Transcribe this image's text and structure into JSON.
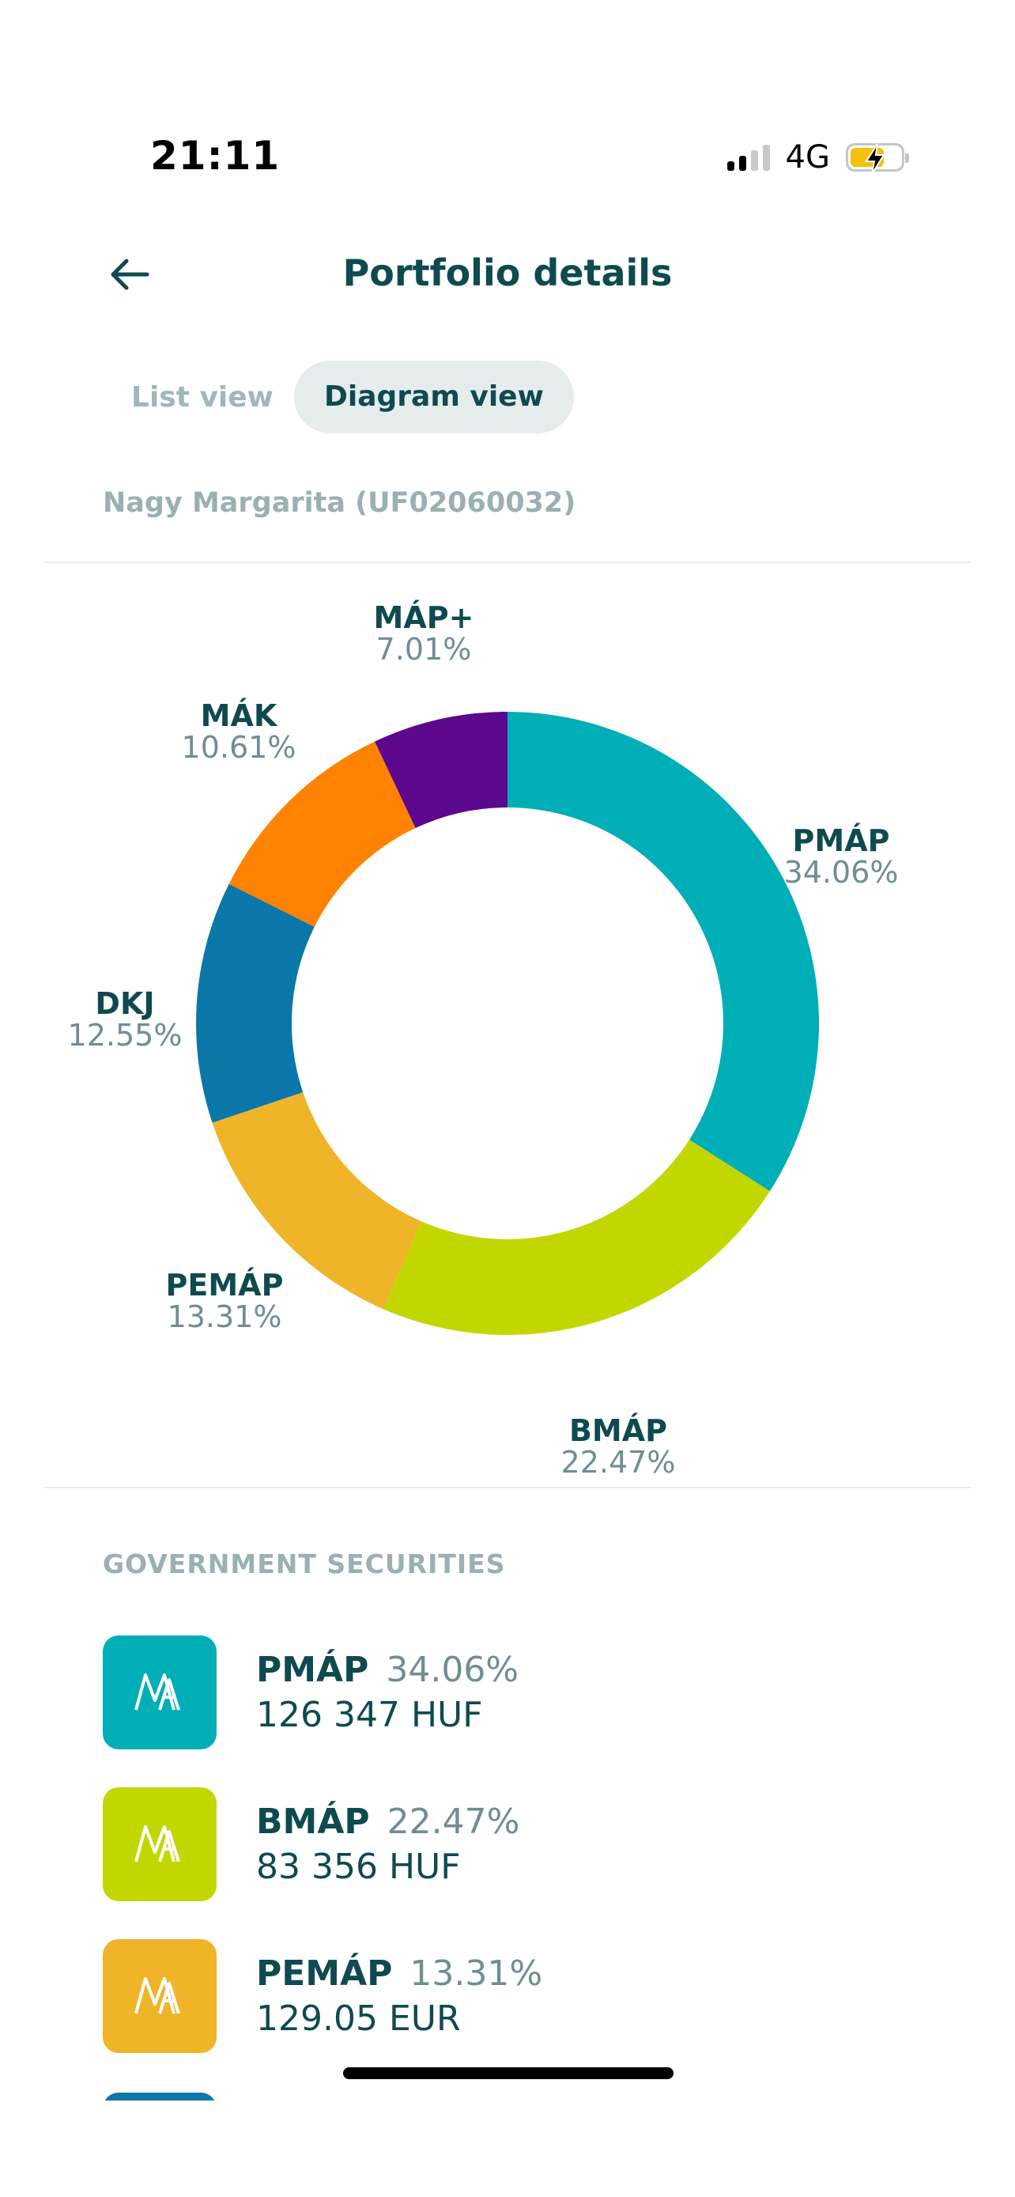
{
  "status_bar": {
    "time": "21:11",
    "network": "4G"
  },
  "header": {
    "title": "Portfolio details"
  },
  "tabs": {
    "list": "List view",
    "diagram": "Diagram view",
    "active": "diagram"
  },
  "owner": "Nagy Margarita (UF02060032)",
  "chart_data": {
    "type": "pie",
    "donut": true,
    "slices": [
      {
        "name": "PMÁP",
        "label": "34.06%",
        "value": 34.06,
        "color": "#00aeb8"
      },
      {
        "name": "BMÁP",
        "label": "22.47%",
        "value": 22.47,
        "color": "#c2d700"
      },
      {
        "name": "PEMÁP",
        "label": "13.31%",
        "value": 13.31,
        "color": "#f0b429"
      },
      {
        "name": "DKJ",
        "label": "12.55%",
        "value": 12.55,
        "color": "#0a77a8"
      },
      {
        "name": "MÁK",
        "label": "10.61%",
        "value": 10.61,
        "color": "#ff8300"
      },
      {
        "name": "MÁP+",
        "label": "7.01%",
        "value": 7.01,
        "color": "#5c088e"
      }
    ]
  },
  "section_title": "GOVERNMENT SECURITIES",
  "holdings": [
    {
      "name": "PMÁP",
      "percent": "34.06%",
      "amount": "126 347 HUF",
      "color": "#00aeb8",
      "icon": "map-logo-icon"
    },
    {
      "name": "BMÁP",
      "percent": "22.47%",
      "amount": "83 356 HUF",
      "color": "#c2d700",
      "icon": "map-logo-icon"
    },
    {
      "name": "PEMÁP",
      "percent": "13.31%",
      "amount": "129.05 EUR",
      "color": "#f0b429",
      "icon": "map-logo-icon"
    }
  ]
}
